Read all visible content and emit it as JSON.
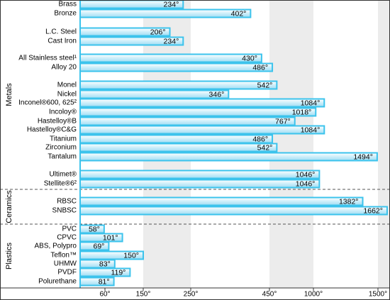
{
  "chart_data": {
    "type": "bar",
    "xlim": [
      0,
      1700
    ],
    "xticks": [
      {
        "value": 60,
        "label": "60°"
      },
      {
        "value": 150,
        "label": "150°"
      },
      {
        "value": 250,
        "label": "250°"
      },
      {
        "value": 450,
        "label": "450°"
      },
      {
        "value": 1000,
        "label": "1000°"
      },
      {
        "value": 1500,
        "label": "1500°"
      }
    ],
    "color": "#3cc3ec",
    "groups": [
      {
        "name": "Metals",
        "categories": [
          "Brass",
          "Bronze",
          "L.C. Steel",
          "Cast Iron",
          "All Stainless steel¹",
          "Alloy 20",
          "Monel",
          "Nickel",
          "Inconel®600, 625²",
          "Incoloy®",
          "Hastelloy®B",
          "Hastelloy®C&G",
          "Titanium",
          "Zirconium",
          "Tantalum",
          "Ultimet®",
          "Stellite®6²"
        ],
        "values": [
          234,
          402,
          206,
          234,
          430,
          486,
          542,
          346,
          1084,
          1018,
          767,
          1084,
          486,
          542,
          1494,
          1046,
          1046
        ],
        "value_labels": [
          "234°",
          "402°",
          "206°",
          "234°",
          "430°",
          "486°",
          "542°",
          "346°",
          "1084°",
          "1018°",
          "767°",
          "1084°",
          "486°",
          "542°",
          "1494°",
          "1046°",
          "1046°"
        ]
      },
      {
        "name": "Ceramics",
        "categories": [
          "RBSC",
          "SNBSC"
        ],
        "values": [
          1382,
          1662
        ],
        "value_labels": [
          "1382°",
          "1662°"
        ]
      },
      {
        "name": "Plastics",
        "categories": [
          "PVC",
          "CPVC",
          "ABS, Polypro",
          "Teflon™",
          "UHMW",
          "PVDF",
          "Polurethane"
        ],
        "values": [
          58,
          101,
          69,
          150,
          83,
          119,
          81
        ],
        "value_labels": [
          "58°",
          "101°",
          "69°",
          "150°",
          "83°",
          "119°",
          "81°"
        ]
      }
    ]
  }
}
